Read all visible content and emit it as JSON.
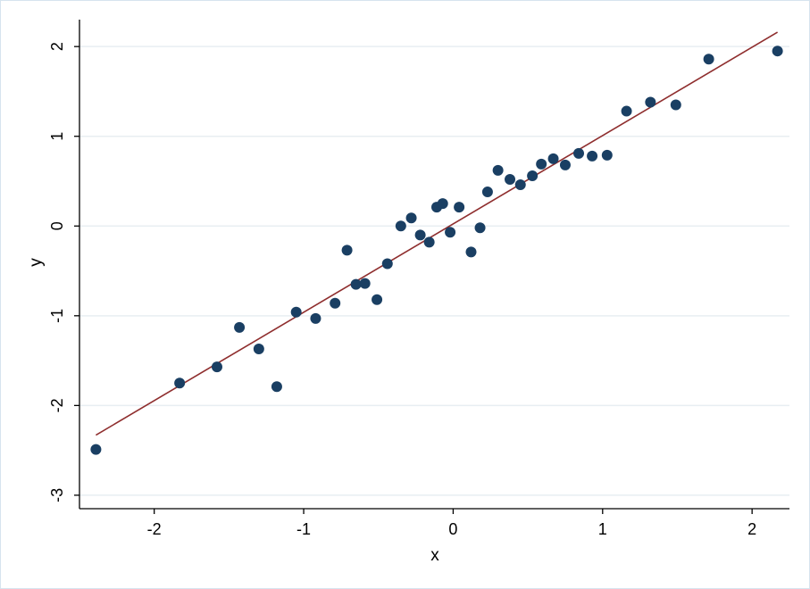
{
  "chart_data": {
    "type": "scatter",
    "title": "",
    "xlabel": "x",
    "ylabel": "y",
    "xlim": [
      -2.5,
      2.25
    ],
    "ylim": [
      -3.15,
      2.3
    ],
    "x_ticks": [
      -2,
      -1,
      0,
      1,
      2
    ],
    "x_tick_labels": [
      "-2",
      "-1",
      "0",
      "1",
      "2"
    ],
    "y_ticks": [
      -3,
      -2,
      -1,
      0,
      1,
      2
    ],
    "y_tick_labels": [
      "-3",
      "-2",
      "-1",
      "0",
      "1",
      "2"
    ],
    "grid": "horizontal",
    "legend": "none",
    "colors": {
      "points": "#1a3f63",
      "fit_line": "#8f2e2e",
      "grid": "#e8eef2",
      "frame": "#d6e4ee"
    },
    "series": [
      {
        "type": "scatter",
        "points": [
          [
            -2.39,
            -2.49
          ],
          [
            -1.83,
            -1.75
          ],
          [
            -1.58,
            -1.57
          ],
          [
            -1.43,
            -1.13
          ],
          [
            -1.3,
            -1.37
          ],
          [
            -1.18,
            -1.79
          ],
          [
            -1.05,
            -0.96
          ],
          [
            -0.92,
            -1.03
          ],
          [
            -0.79,
            -0.86
          ],
          [
            -0.71,
            -0.27
          ],
          [
            -0.65,
            -0.65
          ],
          [
            -0.59,
            -0.64
          ],
          [
            -0.51,
            -0.82
          ],
          [
            -0.44,
            -0.42
          ],
          [
            -0.35,
            0.0
          ],
          [
            -0.28,
            0.09
          ],
          [
            -0.22,
            -0.1
          ],
          [
            -0.16,
            -0.18
          ],
          [
            -0.11,
            0.21
          ],
          [
            -0.07,
            0.25
          ],
          [
            -0.02,
            -0.07
          ],
          [
            0.04,
            0.21
          ],
          [
            0.12,
            -0.29
          ],
          [
            0.18,
            -0.02
          ],
          [
            0.23,
            0.38
          ],
          [
            0.3,
            0.62
          ],
          [
            0.38,
            0.52
          ],
          [
            0.45,
            0.46
          ],
          [
            0.53,
            0.56
          ],
          [
            0.59,
            0.69
          ],
          [
            0.67,
            0.75
          ],
          [
            0.75,
            0.68
          ],
          [
            0.84,
            0.81
          ],
          [
            0.93,
            0.78
          ],
          [
            1.03,
            0.79
          ],
          [
            1.16,
            1.28
          ],
          [
            1.32,
            1.38
          ],
          [
            1.49,
            1.35
          ],
          [
            1.71,
            1.86
          ],
          [
            2.17,
            1.95
          ]
        ]
      },
      {
        "type": "line",
        "points": [
          [
            -2.39,
            -2.33
          ],
          [
            2.17,
            2.16
          ]
        ]
      }
    ]
  }
}
